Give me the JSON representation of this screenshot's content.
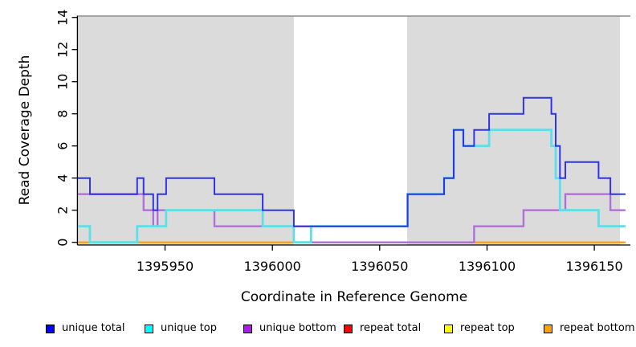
{
  "chart_data": {
    "type": "line",
    "step": true,
    "title": "",
    "xlabel": "Coordinate in Reference Genome",
    "ylabel": "Read Coverage Depth",
    "xlim": [
      1395909.4,
      1396166.8
    ],
    "ylim": [
      0,
      14
    ],
    "x_ticks": [
      1395950,
      1396000,
      1396050,
      1396100,
      1396150
    ],
    "y_ticks": [
      0,
      2,
      4,
      6,
      8,
      10,
      12,
      14
    ],
    "grid": false,
    "legend_position": "bottom",
    "shaded_regions": [
      {
        "x0": 1395909.4,
        "x1": 1396010.0,
        "color": "#dbdbdb"
      },
      {
        "x0": 1396062.8,
        "x1": 1396162.0,
        "color": "#dbdbdb"
      }
    ],
    "top_border_color": "#8a8a8a",
    "axis_color": "#000000",
    "series": [
      {
        "name": "unique total",
        "legend_color": "#0000ff",
        "line_color": "#3232e8",
        "width": 2,
        "z": 6,
        "points": [
          [
            1395909.4,
            4
          ],
          [
            1395915,
            3
          ],
          [
            1395937,
            4
          ],
          [
            1395940,
            3
          ],
          [
            1395944.5,
            2
          ],
          [
            1395946.5,
            3
          ],
          [
            1395950.5,
            4
          ],
          [
            1395973,
            3
          ],
          [
            1395995.5,
            2
          ],
          [
            1396010,
            1
          ],
          [
            1396063,
            3
          ],
          [
            1396080,
            4
          ],
          [
            1396084.5,
            7
          ],
          [
            1396089,
            6
          ],
          [
            1396094,
            7
          ],
          [
            1396101,
            8
          ],
          [
            1396117,
            9
          ],
          [
            1396130,
            8
          ],
          [
            1396132,
            6
          ],
          [
            1396134,
            4
          ],
          [
            1396136.5,
            5
          ],
          [
            1396152,
            4
          ],
          [
            1396157.5,
            3
          ],
          [
            1396164.5,
            3
          ]
        ]
      },
      {
        "name": "unique top",
        "legend_color": "#00ffff",
        "line_color": "#5fdde8",
        "width": 2.8,
        "z": 5,
        "points": [
          [
            1395909.4,
            1
          ],
          [
            1395915,
            0
          ],
          [
            1395937,
            1
          ],
          [
            1395950.5,
            2
          ],
          [
            1395995.5,
            1
          ],
          [
            1396010,
            0
          ],
          [
            1396018,
            1
          ],
          [
            1396063,
            3
          ],
          [
            1396080,
            4
          ],
          [
            1396084.5,
            7
          ],
          [
            1396089,
            6
          ],
          [
            1396101,
            7
          ],
          [
            1396130,
            6
          ],
          [
            1396132,
            4
          ],
          [
            1396134,
            2
          ],
          [
            1396152,
            1
          ],
          [
            1396164.5,
            1
          ]
        ]
      },
      {
        "name": "unique bottom",
        "legend_color": "#a020f0",
        "line_color": "#b06fdb",
        "width": 2.4,
        "z": 4,
        "points": [
          [
            1395909.4,
            3
          ],
          [
            1395940,
            2
          ],
          [
            1395944.5,
            1
          ],
          [
            1395946.5,
            2
          ],
          [
            1395973,
            1
          ],
          [
            1396018,
            0
          ],
          [
            1396094,
            1
          ],
          [
            1396117,
            2
          ],
          [
            1396136.5,
            3
          ],
          [
            1396157.5,
            2
          ],
          [
            1396164.5,
            2
          ]
        ]
      },
      {
        "name": "repeat total",
        "legend_color": "#ff0000",
        "line_color": "#d8304e",
        "width": 2,
        "z": 1,
        "points": [
          [
            1395909.4,
            0
          ],
          [
            1396164.5,
            0
          ]
        ]
      },
      {
        "name": "repeat top",
        "legend_color": "#ffff00",
        "line_color": "#f0f000",
        "width": 2,
        "z": 2,
        "points": [
          [
            1395909.4,
            0
          ],
          [
            1396164.5,
            0
          ]
        ]
      },
      {
        "name": "repeat bottom",
        "legend_color": "#ffa500",
        "line_color": "#ffa018",
        "width": 2.2,
        "z": 3,
        "points": [
          [
            1395909.4,
            0
          ],
          [
            1396164.5,
            0
          ]
        ]
      }
    ]
  },
  "legend": {
    "item_lefts": [
      57,
      180,
      303,
      428,
      553,
      677
    ]
  }
}
